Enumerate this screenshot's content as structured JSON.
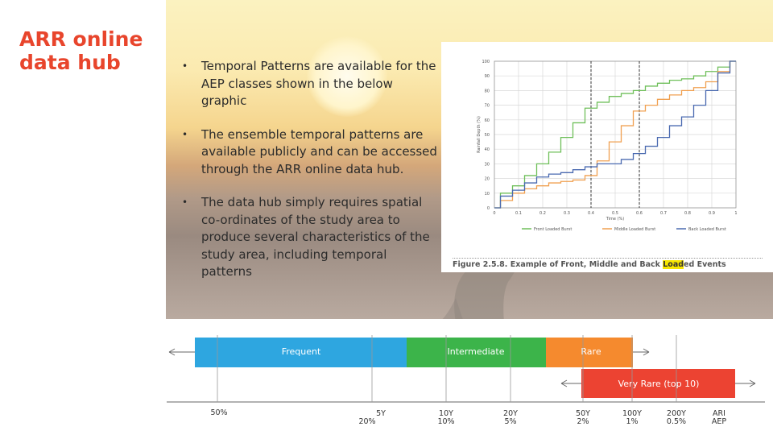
{
  "slide": {
    "title": "ARR online data hub",
    "bullets": [
      "Temporal Patterns are available for the AEP classes shown in the below graphic",
      "The ensemble temporal patterns are available publicly and can be accessed through the ARR online data hub.",
      "The data hub simply requires spatial co-ordinates of the study area to produce several characteristics of the study area, including temporal patterns"
    ],
    "bullet_marker": "•"
  },
  "figure": {
    "caption_prefix": "Figure 2.5.8.  Example of Front, Middle and Back ",
    "caption_highlight": "Load",
    "caption_suffix": "ed Events",
    "chart_data": {
      "type": "line",
      "xlabel": "Time (%)",
      "ylabel": "Rainfall Depth (%)",
      "xlim": [
        0,
        1
      ],
      "ylim": [
        0,
        100
      ],
      "x_ticks": [
        "0",
        "0.1",
        "0.2",
        "0.3",
        "0.4",
        "0.5",
        "0.6",
        "0.7",
        "0.8",
        "0.9",
        "1"
      ],
      "y_ticks": [
        "0",
        "10",
        "20",
        "30",
        "40",
        "50",
        "60",
        "70",
        "80",
        "90",
        "100"
      ],
      "grid": true,
      "legend_position": "bottom",
      "vertical_lines": [
        0.4,
        0.6
      ],
      "series": [
        {
          "name": "Front Loaded Burst",
          "color": "#6fbf5a",
          "x": [
            0,
            0.05,
            0.1,
            0.15,
            0.2,
            0.25,
            0.3,
            0.35,
            0.4,
            0.45,
            0.5,
            0.55,
            0.6,
            0.65,
            0.7,
            0.75,
            0.8,
            0.85,
            0.9,
            0.95,
            1
          ],
          "y": [
            0,
            10,
            15,
            22,
            30,
            38,
            48,
            58,
            68,
            72,
            76,
            78,
            80,
            83,
            85,
            87,
            88,
            90,
            93,
            96,
            100
          ]
        },
        {
          "name": "Middle Loaded Burst",
          "color": "#f0a050",
          "x": [
            0,
            0.05,
            0.1,
            0.15,
            0.2,
            0.25,
            0.3,
            0.35,
            0.4,
            0.45,
            0.5,
            0.55,
            0.6,
            0.65,
            0.7,
            0.75,
            0.8,
            0.85,
            0.9,
            0.95,
            1
          ],
          "y": [
            0,
            5,
            10,
            13,
            15,
            17,
            18,
            19,
            22,
            32,
            45,
            56,
            66,
            70,
            74,
            77,
            80,
            82,
            86,
            93,
            100
          ]
        },
        {
          "name": "Back Loaded Burst",
          "color": "#4a6ab0",
          "x": [
            0,
            0.05,
            0.1,
            0.15,
            0.2,
            0.25,
            0.3,
            0.35,
            0.4,
            0.45,
            0.5,
            0.55,
            0.6,
            0.65,
            0.7,
            0.75,
            0.8,
            0.85,
            0.9,
            0.95,
            1
          ],
          "y": [
            0,
            8,
            12,
            17,
            21,
            23,
            24,
            26,
            28,
            30,
            30,
            33,
            37,
            42,
            48,
            56,
            62,
            70,
            80,
            92,
            100
          ]
        }
      ]
    }
  },
  "scale": {
    "bands": [
      {
        "label": "Frequent",
        "color": "#2ea6e0"
      },
      {
        "label": "Intermediate",
        "color": "#3cb44a"
      },
      {
        "label": "Rare",
        "color": "#f58a2e"
      },
      {
        "label": "Very Rare (top 10)",
        "color": "#ec4332"
      }
    ],
    "ticks": [
      {
        "top": "50%",
        "bottom": ""
      },
      {
        "top": "5Y",
        "bottom": "20%"
      },
      {
        "top": "10Y",
        "bottom": "10%"
      },
      {
        "top": "20Y",
        "bottom": "5%"
      },
      {
        "top": "50Y",
        "bottom": "2%"
      },
      {
        "top": "100Y",
        "bottom": "1%"
      },
      {
        "top": "200Y",
        "bottom": "0.5%"
      },
      {
        "top": "ARI",
        "bottom": "AEP"
      }
    ],
    "axis_color": "#666666"
  }
}
